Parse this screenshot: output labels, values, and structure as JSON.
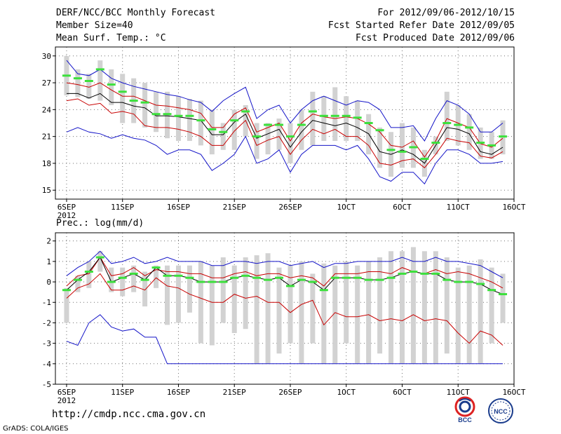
{
  "header": {
    "title": "DERF/NCC/BCC Monthly Forecast",
    "member_size": "Member Size=40",
    "variable": "Mean Surf. Temp.: °C",
    "period": "For 2012/09/06-2012/10/15",
    "started": "Fcst Started Refer Date 2012/09/05",
    "produced": "Fcst Produced Date 2012/09/06"
  },
  "footer": {
    "url": "http://cmdp.ncc.cma.gov.cn",
    "grads": "GrADS: COLA/IGES",
    "logo_bcc": "BCC",
    "logo_ncc": "NCC"
  },
  "colors": {
    "envelope": "#1414c8",
    "spread": "#c80000",
    "mean": "#000000",
    "box": "#d2d2d2",
    "median": "#3ce03c",
    "grid": "#707070"
  },
  "x_ticks": [
    "6SEP",
    "11SEP",
    "16SEP",
    "21SEP",
    "26SEP",
    "1OCT",
    "6OCT",
    "11OCT",
    "16OCT"
  ],
  "x_year": "2012",
  "chart_data": [
    {
      "type": "line",
      "title": "Mean Surf. Temp.: °C",
      "ylabel": "",
      "ylim": [
        14,
        31
      ],
      "yticks": [
        15,
        18,
        21,
        24,
        27,
        30
      ],
      "x": [
        1,
        2,
        3,
        4,
        5,
        6,
        7,
        8,
        9,
        10,
        11,
        12,
        13,
        14,
        15,
        16,
        17,
        18,
        19,
        20,
        21,
        22,
        23,
        24,
        25,
        26,
        27,
        28,
        29,
        30,
        31,
        32,
        33,
        34,
        35,
        36,
        37,
        38,
        39,
        40
      ],
      "series": [
        {
          "name": "ensemble max",
          "values": [
            29.5,
            28.0,
            27.8,
            28.5,
            27.5,
            27.0,
            26.6,
            26.3,
            26.0,
            25.7,
            25.5,
            25.1,
            24.8,
            23.8,
            25.0,
            25.8,
            26.5,
            23.0,
            24.0,
            24.5,
            22.5,
            24.0,
            25.0,
            25.5,
            25.0,
            24.5,
            25.0,
            24.8,
            24.0,
            22.0,
            22.0,
            22.2,
            20.5,
            23.0,
            25.0,
            24.5,
            23.5,
            21.5,
            21.5,
            22.5
          ]
        },
        {
          "name": "ensemble min",
          "values": [
            21.5,
            22.0,
            21.5,
            21.3,
            20.8,
            21.2,
            20.8,
            20.6,
            20.0,
            19.0,
            19.5,
            19.5,
            19.0,
            17.2,
            18.0,
            19.0,
            21.0,
            18.0,
            18.5,
            19.5,
            17.0,
            19.0,
            20.0,
            20.0,
            20.0,
            19.5,
            20.0,
            18.5,
            16.5,
            16.0,
            17.0,
            17.0,
            15.7,
            18.0,
            19.5,
            19.5,
            19.0,
            18.0,
            18.0,
            18.2
          ]
        },
        {
          "name": "mean + 1 sd",
          "values": [
            27.0,
            26.8,
            26.5,
            27.0,
            26.2,
            25.5,
            25.5,
            25.0,
            24.5,
            24.4,
            24.2,
            24.0,
            23.6,
            22.0,
            22.0,
            23.5,
            24.2,
            21.5,
            22.0,
            22.5,
            20.5,
            22.5,
            23.5,
            23.2,
            23.0,
            23.2,
            23.0,
            22.4,
            21.5,
            20.0,
            19.8,
            20.5,
            18.7,
            20.5,
            23.0,
            22.5,
            22.0,
            20.2,
            19.8,
            20.8
          ]
        },
        {
          "name": "ensemble mean",
          "values": [
            25.8,
            25.8,
            25.3,
            25.8,
            24.8,
            24.8,
            24.4,
            24.2,
            23.3,
            23.3,
            23.2,
            23.0,
            22.8,
            21.2,
            21.2,
            22.6,
            23.5,
            20.8,
            21.3,
            21.8,
            19.8,
            21.5,
            22.8,
            22.5,
            22.2,
            22.5,
            22.0,
            21.3,
            19.3,
            19.0,
            19.5,
            19.0,
            18.0,
            20.0,
            22.0,
            21.8,
            21.3,
            19.3,
            19.0,
            19.8
          ]
        },
        {
          "name": "mean - 1 sd",
          "values": [
            25.0,
            25.2,
            24.5,
            24.7,
            23.6,
            23.8,
            23.5,
            22.2,
            22.0,
            22.0,
            21.8,
            21.5,
            21.0,
            20.0,
            20.0,
            21.6,
            22.8,
            20.0,
            20.6,
            21.0,
            19.0,
            20.6,
            21.8,
            21.3,
            21.8,
            21.0,
            21.0,
            20.0,
            18.0,
            17.8,
            18.3,
            18.5,
            17.5,
            19.0,
            20.8,
            20.5,
            20.3,
            18.8,
            18.6,
            19.3
          ]
        }
      ],
      "boxes_low": [
        25.6,
        25.4,
        25.2,
        25.0,
        24.5,
        22.5,
        22.5,
        22.0,
        21.5,
        20.8,
        20.5,
        20.5,
        20.0,
        19.0,
        19.5,
        19.5,
        21.0,
        18.5,
        19.0,
        19.5,
        18.0,
        19.5,
        20.0,
        20.5,
        20.5,
        20.5,
        20.5,
        19.0,
        17.5,
        16.5,
        17.5,
        17.5,
        16.5,
        19.0,
        20.5,
        20.0,
        19.5,
        18.5,
        18.5,
        19.0
      ],
      "boxes_high": [
        30.0,
        28.5,
        28.0,
        29.5,
        28.5,
        28.0,
        27.5,
        27.0,
        26.0,
        26.0,
        25.5,
        25.2,
        25.0,
        24.0,
        22.5,
        24.0,
        24.5,
        22.5,
        22.5,
        23.0,
        22.5,
        24.0,
        26.0,
        25.5,
        26.5,
        25.5,
        25.0,
        23.5,
        22.0,
        21.5,
        22.5,
        22.0,
        19.5,
        21.0,
        26.0,
        24.5,
        23.5,
        22.0,
        21.5,
        22.8
      ],
      "medians": [
        27.8,
        27.5,
        27.2,
        28.5,
        26.8,
        26.0,
        25.0,
        24.8,
        23.5,
        23.5,
        23.3,
        23.3,
        22.8,
        21.8,
        21.5,
        22.8,
        23.8,
        21.0,
        22.3,
        22.3,
        21.0,
        22.3,
        23.8,
        23.3,
        23.3,
        23.3,
        23.1,
        22.5,
        21.7,
        19.5,
        19.3,
        19.8,
        18.5,
        20.3,
        22.5,
        22.3,
        22.0,
        20.3,
        20.0,
        21.0
      ]
    },
    {
      "type": "line",
      "title": "Prec.: log(mm/d)",
      "ylabel": "",
      "ylim": [
        -5,
        2.4
      ],
      "yticks": [
        -5,
        -4,
        -3,
        -2,
        -1,
        0,
        1,
        2
      ],
      "x": [
        1,
        2,
        3,
        4,
        5,
        6,
        7,
        8,
        9,
        10,
        11,
        12,
        13,
        14,
        15,
        16,
        17,
        18,
        19,
        20,
        21,
        22,
        23,
        24,
        25,
        26,
        27,
        28,
        29,
        30,
        31,
        32,
        33,
        34,
        35,
        36,
        37,
        38,
        39,
        40
      ],
      "series": [
        {
          "name": "ensemble max",
          "values": [
            0.3,
            0.7,
            1.0,
            1.5,
            0.9,
            1.0,
            1.2,
            0.9,
            1.0,
            1.2,
            1.0,
            1.0,
            1.0,
            0.8,
            0.8,
            1.0,
            1.0,
            0.9,
            1.0,
            1.0,
            0.8,
            0.9,
            1.0,
            0.7,
            0.9,
            0.9,
            1.0,
            1.0,
            1.0,
            1.0,
            1.2,
            1.0,
            1.0,
            1.2,
            1.0,
            1.0,
            0.9,
            0.8,
            0.5,
            0.2
          ]
        },
        {
          "name": "ensemble min",
          "values": [
            -2.9,
            -3.1,
            -2.0,
            -1.6,
            -2.2,
            -2.4,
            -2.3,
            -2.7,
            -2.7,
            -4.0,
            -4.0,
            -4.0,
            -4.0,
            -4.0,
            -4.0,
            -4.0,
            -4.0,
            -4.0,
            -4.0,
            -4.0,
            -4.0,
            -4.0,
            -4.0,
            -4.0,
            -4.0,
            -4.0,
            -4.0,
            -4.0,
            -4.0,
            -4.0,
            -4.0,
            -4.0,
            -4.0,
            -4.0,
            -4.0,
            -4.0,
            -4.0,
            -4.0,
            -4.0,
            -4.0
          ]
        },
        {
          "name": "mean + 1 sd",
          "values": [
            -0.2,
            0.3,
            0.4,
            1.2,
            0.3,
            0.4,
            0.7,
            0.3,
            0.6,
            0.5,
            0.5,
            0.4,
            0.4,
            0.2,
            0.2,
            0.4,
            0.5,
            0.3,
            0.4,
            0.4,
            0.2,
            0.3,
            0.2,
            -0.2,
            0.4,
            0.4,
            0.4,
            0.5,
            0.5,
            0.4,
            0.7,
            0.5,
            0.4,
            0.6,
            0.4,
            0.5,
            0.4,
            0.2,
            0.0,
            -0.3
          ]
        },
        {
          "name": "ensemble mean",
          "values": [
            -0.4,
            0.1,
            0.5,
            1.2,
            0.0,
            0.2,
            0.4,
            0.1,
            0.7,
            0.3,
            0.3,
            0.2,
            0.0,
            0.0,
            0.0,
            0.2,
            0.3,
            0.2,
            0.1,
            0.2,
            -0.2,
            0.1,
            0.0,
            -0.4,
            0.2,
            0.2,
            0.2,
            0.1,
            0.1,
            0.2,
            0.4,
            0.5,
            0.4,
            0.4,
            0.1,
            0.0,
            0.0,
            -0.1,
            -0.4,
            -0.6
          ]
        },
        {
          "name": "mean - 1 sd",
          "values": [
            -0.8,
            -0.3,
            -0.1,
            0.4,
            -0.4,
            -0.4,
            -0.2,
            -0.4,
            0.2,
            -0.2,
            -0.3,
            -0.6,
            -0.8,
            -1.0,
            -1.0,
            -0.6,
            -0.8,
            -0.7,
            -1.0,
            -1.0,
            -1.5,
            -1.1,
            -0.9,
            -2.1,
            -1.5,
            -1.7,
            -1.7,
            -1.6,
            -1.9,
            -1.8,
            -1.9,
            -1.6,
            -1.9,
            -1.8,
            -1.9,
            -2.5,
            -3.0,
            -2.4,
            -2.6,
            -3.1
          ]
        }
      ],
      "boxes_low": [
        -2.0,
        -0.5,
        -0.3,
        0.5,
        -0.5,
        -0.7,
        -0.5,
        -1.2,
        -0.3,
        -2.1,
        -2.0,
        -1.5,
        -3.0,
        -3.1,
        -2.0,
        -2.5,
        -2.3,
        -4.0,
        -4.0,
        -3.5,
        -3.0,
        -4.0,
        -3.0,
        -4.0,
        -4.0,
        -3.0,
        -4.0,
        -4.0,
        -3.5,
        -4.0,
        -4.0,
        -4.0,
        -4.0,
        -4.0,
        -3.5,
        -4.0,
        -4.0,
        -4.0,
        -3.0,
        -2.0
      ],
      "boxes_high": [
        -0.3,
        0.3,
        1.0,
        1.5,
        0.7,
        0.7,
        0.8,
        0.5,
        0.8,
        0.8,
        0.8,
        0.8,
        1.0,
        0.8,
        1.2,
        0.8,
        1.2,
        1.3,
        1.4,
        0.7,
        0.8,
        1.0,
        0.4,
        0.9,
        0.8,
        1.0,
        0.8,
        1.0,
        1.2,
        1.5,
        1.5,
        1.7,
        1.5,
        1.5,
        1.2,
        0.7,
        0.8,
        1.1,
        0.7,
        0.4
      ]
    }
  ]
}
